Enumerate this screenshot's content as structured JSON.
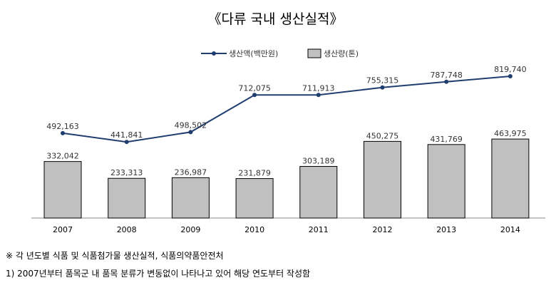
{
  "chart_data": {
    "type": "bar+line",
    "title": "《다류 국내 생산실적》",
    "categories": [
      "2007",
      "2008",
      "2009",
      "2010",
      "2011",
      "2012",
      "2013",
      "2014"
    ],
    "series": [
      {
        "name": "생산액(백만원)",
        "type": "line",
        "color": "#1F3E6E",
        "values": [
          492163,
          441841,
          498502,
          712075,
          711913,
          755315,
          787748,
          819740
        ],
        "labels": [
          "492,163",
          "441,841",
          "498,502",
          "712,075",
          "711,913",
          "755,315",
          "787,748",
          "819,740"
        ]
      },
      {
        "name": "생산량(톤)",
        "type": "bar",
        "color": "#C0C0C0",
        "values": [
          332042,
          233313,
          236987,
          231879,
          303189,
          450275,
          431769,
          463975
        ],
        "labels": [
          "332,042",
          "233,313",
          "236,987",
          "231,879",
          "303,189",
          "450,275",
          "431,769",
          "463,975"
        ]
      }
    ],
    "legend": "top-center",
    "grid": false
  },
  "notes": {
    "source": "※ 각 년도별 식품 및 식품첨가물 생산실적, 식품의약품안전처",
    "footnote": "1) 2007년부터 품목군 내 품목 분류가 변동없이 나타나고 있어 해당 연도부터 작성함"
  }
}
